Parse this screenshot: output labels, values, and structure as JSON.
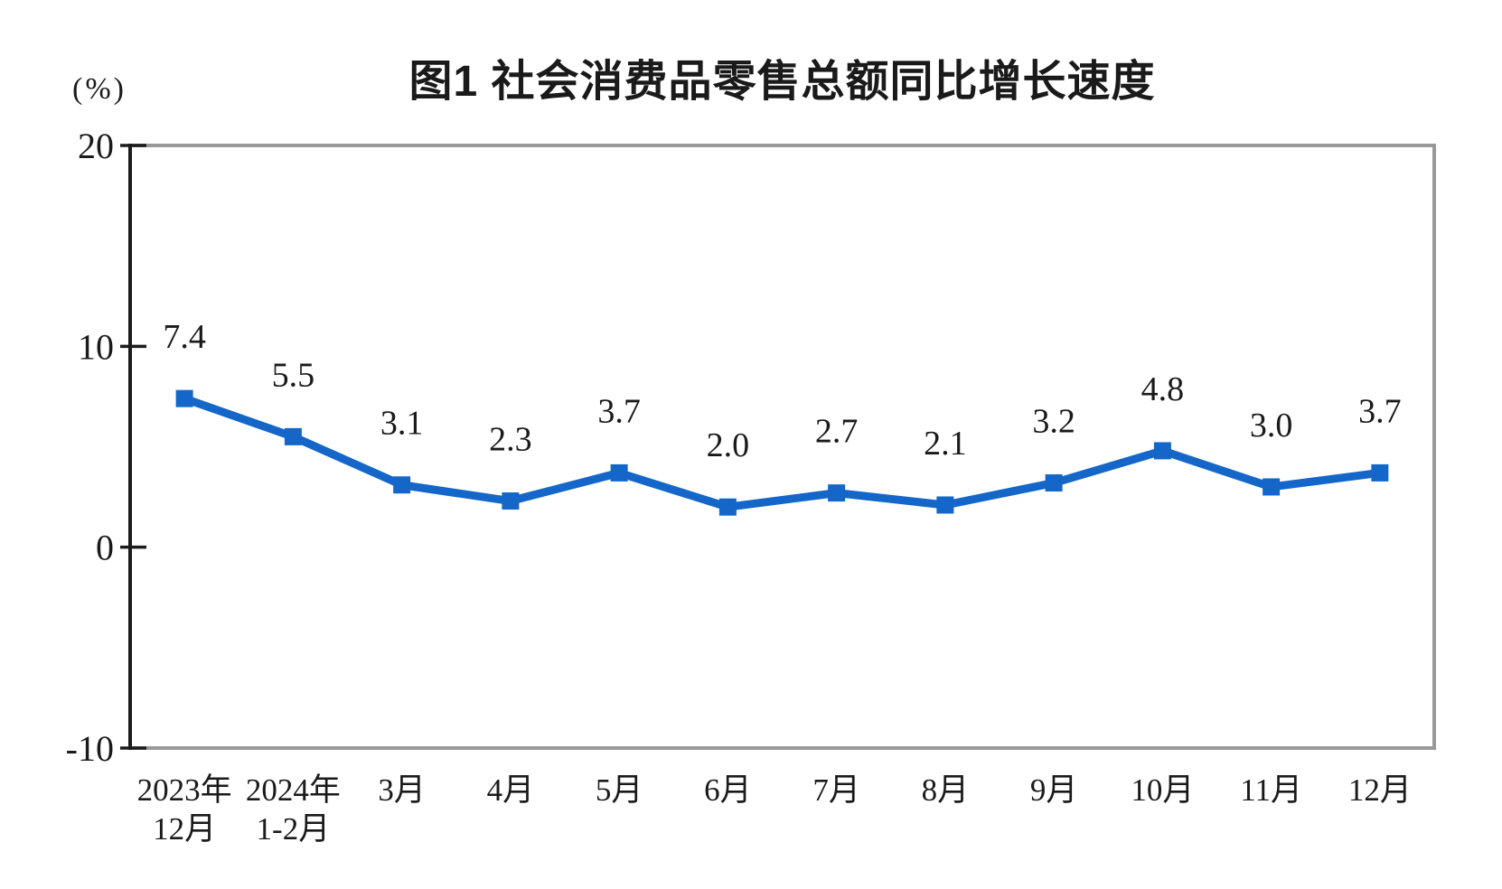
{
  "page": {
    "background_color": "#ffffff"
  },
  "chart_data": {
    "type": "line",
    "title": "图1 社会消费品零售总额同比增长速度",
    "y_unit_label": "(%)",
    "categories": [
      "2023年\n12月",
      "2024年\n1-2月",
      "3月",
      "4月",
      "5月",
      "6月",
      "7月",
      "8月",
      "9月",
      "10月",
      "11月",
      "12月"
    ],
    "values": [
      7.4,
      5.5,
      3.1,
      2.3,
      3.7,
      2.0,
      2.7,
      2.1,
      3.2,
      4.8,
      3.0,
      3.7
    ],
    "data_labels": [
      "7.4",
      "5.5",
      "3.1",
      "2.3",
      "3.7",
      "2.0",
      "2.7",
      "2.1",
      "3.2",
      "4.8",
      "3.0",
      "3.7"
    ],
    "xlabel": "",
    "ylabel": "",
    "ylim": [
      -10,
      20
    ],
    "y_ticks": [
      20,
      10,
      0,
      -10
    ],
    "grid": false,
    "legend": "none",
    "line_color": "#1467c8",
    "marker_shape": "square",
    "frame_color": "#999999",
    "axis_color": "#1c1c1c",
    "text_color": "#1a1a1a"
  }
}
